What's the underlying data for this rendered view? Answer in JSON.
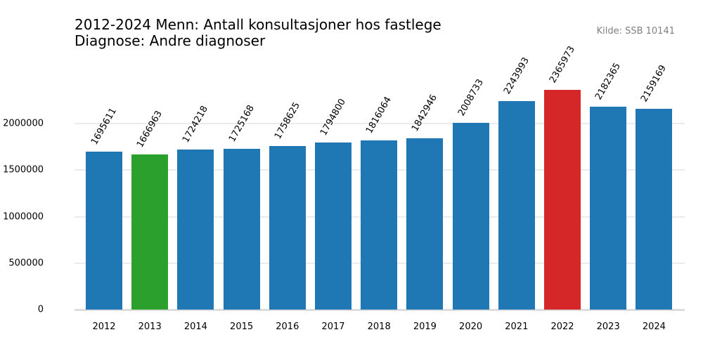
{
  "header": {
    "title": "2012-2024 Menn: Antall konsultasjoner hos fastlege\nDiagnose: Andre diagnoser",
    "source": "Kilde: SSB 10141"
  },
  "colors": {
    "default": "#1f77b4",
    "min": "#2ca02c",
    "max": "#d62728",
    "grid": "#ebebeb"
  },
  "chart_data": {
    "type": "bar",
    "title": "2012-2024 Menn: Antall konsultasjoner hos fastlege — Diagnose: Andre diagnoser",
    "xlabel": "",
    "ylabel": "",
    "categories": [
      "2012",
      "2013",
      "2014",
      "2015",
      "2016",
      "2017",
      "2018",
      "2019",
      "2020",
      "2021",
      "2022",
      "2023",
      "2024"
    ],
    "values": [
      1695611,
      1666963,
      1724218,
      1725168,
      1758625,
      1794800,
      1816064,
      1842946,
      2008733,
      2243993,
      2365973,
      2182365,
      2159169
    ],
    "highlight": {
      "min": "2013",
      "max": "2022"
    },
    "yticks": [
      0,
      500000,
      1000000,
      1500000,
      2000000
    ],
    "ytick_labels": [
      "0",
      "500000",
      "1000000",
      "1500000",
      "2000000"
    ],
    "ylim": [
      0,
      2600000
    ],
    "grid": true,
    "legend": false,
    "annotation": "Kilde: SSB 10141"
  }
}
